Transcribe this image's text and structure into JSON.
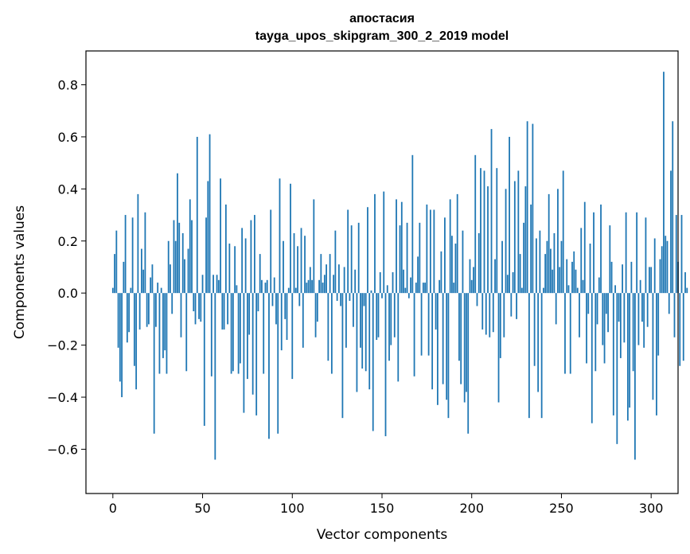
{
  "chart_data": {
    "type": "bar",
    "title": "апостасия",
    "subtitle": "tayga_upos_skipgram_300_2_2019 model",
    "xlabel": "Vector components",
    "ylabel": "Components values",
    "xlim": [
      -15,
      315
    ],
    "ylim": [
      -0.77,
      0.93
    ],
    "xticks": [
      0,
      50,
      100,
      150,
      200,
      250,
      300
    ],
    "xtick_labels": [
      "0",
      "50",
      "100",
      "150",
      "200",
      "250",
      "300"
    ],
    "yticks": [
      -0.6,
      -0.4,
      -0.2,
      0.0,
      0.2,
      0.4,
      0.6,
      0.8
    ],
    "ytick_labels": [
      "−0.6",
      "−0.4",
      "−0.2",
      "0.0",
      "0.2",
      "0.4",
      "0.6",
      "0.8"
    ],
    "bar_color": "#1f77b4",
    "grid": false,
    "values": [
      0.02,
      0.15,
      0.24,
      -0.21,
      -0.34,
      -0.4,
      0.12,
      0.3,
      -0.19,
      -0.15,
      0.02,
      0.29,
      -0.28,
      -0.37,
      0.38,
      -0.14,
      0.17,
      0.09,
      0.31,
      -0.13,
      -0.12,
      0.06,
      0.11,
      -0.54,
      -0.13,
      0.04,
      -0.31,
      0.02,
      -0.25,
      -0.22,
      -0.31,
      0.2,
      0.11,
      -0.08,
      0.28,
      0.2,
      0.46,
      0.27,
      -0.17,
      0.23,
      0.13,
      -0.3,
      0.17,
      0.36,
      0.28,
      -0.07,
      -0.12,
      0.6,
      -0.1,
      -0.11,
      0.07,
      -0.51,
      0.29,
      0.43,
      0.61,
      -0.32,
      0.07,
      -0.64,
      0.07,
      0.05,
      0.44,
      -0.14,
      -0.14,
      0.34,
      -0.12,
      0.19,
      -0.31,
      -0.3,
      0.18,
      0.03,
      -0.31,
      -0.27,
      0.25,
      -0.46,
      0.21,
      -0.33,
      -0.16,
      0.28,
      -0.39,
      0.3,
      -0.47,
      -0.07,
      0.15,
      0.05,
      -0.31,
      0.04,
      0.05,
      -0.56,
      0.32,
      -0.05,
      0.06,
      -0.12,
      -0.54,
      0.44,
      -0.22,
      0.2,
      -0.1,
      -0.18,
      0.02,
      0.42,
      -0.33,
      0.23,
      0.02,
      0.18,
      -0.05,
      0.25,
      -0.21,
      0.22,
      0.04,
      0.05,
      0.1,
      0.05,
      0.36,
      -0.17,
      -0.11,
      0.05,
      0.15,
      0.04,
      0.07,
      0.11,
      -0.26,
      0.15,
      -0.31,
      0.07,
      0.24,
      -0.03,
      0.11,
      -0.05,
      -0.48,
      0.1,
      -0.21,
      0.32,
      -0.03,
      0.26,
      -0.13,
      0.09,
      -0.38,
      0.27,
      -0.21,
      -0.29,
      -0.05,
      -0.3,
      0.33,
      -0.37,
      0.01,
      -0.53,
      0.38,
      -0.18,
      -0.17,
      0.08,
      -0.02,
      0.39,
      -0.55,
      0.03,
      -0.26,
      -0.2,
      0.08,
      -0.17,
      0.36,
      -0.34,
      0.26,
      0.35,
      0.09,
      0.02,
      0.27,
      -0.02,
      0.06,
      0.53,
      -0.32,
      0.04,
      0.14,
      0.27,
      -0.24,
      0.04,
      0.04,
      0.34,
      -0.24,
      0.32,
      -0.37,
      0.32,
      -0.14,
      -0.43,
      0.05,
      0.16,
      -0.35,
      0.29,
      -0.41,
      -0.48,
      0.36,
      0.22,
      0.04,
      0.19,
      0.38,
      -0.26,
      -0.35,
      0.24,
      -0.42,
      -0.38,
      -0.54,
      0.13,
      0.05,
      0.1,
      0.53,
      -0.05,
      0.23,
      0.48,
      -0.14,
      0.47,
      -0.16,
      0.41,
      -0.17,
      0.63,
      -0.15,
      0.13,
      0.48,
      -0.42,
      -0.25,
      0.2,
      -0.17,
      0.4,
      0.07,
      0.6,
      -0.09,
      0.08,
      0.43,
      -0.1,
      0.47,
      0.15,
      0.02,
      0.27,
      0.41,
      0.66,
      -0.48,
      0.34,
      0.65,
      -0.28,
      0.21,
      -0.38,
      0.24,
      -0.48,
      0.02,
      0.15,
      0.2,
      0.38,
      0.17,
      0.09,
      0.23,
      -0.12,
      0.4,
      0.1,
      0.2,
      0.47,
      -0.31,
      0.13,
      0.03,
      -0.31,
      0.12,
      0.16,
      0.09,
      0.02,
      -0.17,
      0.25,
      0.05,
      0.35,
      -0.27,
      -0.08,
      0.19,
      -0.5,
      0.31,
      -0.3,
      -0.12,
      0.06,
      0.34,
      -0.2,
      -0.27,
      -0.08,
      -0.15,
      0.26,
      0.12,
      -0.47,
      0.03,
      -0.58,
      -0.11,
      -0.25,
      0.11,
      -0.19,
      0.31,
      -0.49,
      -0.44,
      0.12,
      -0.3,
      -0.64,
      0.31,
      -0.2,
      0.05,
      -0.11,
      -0.21,
      0.29,
      -0.13,
      0.1,
      0.1,
      -0.41,
      0.21,
      -0.47,
      -0.24,
      0.13,
      0.18,
      0.85,
      0.22,
      0.2,
      -0.08,
      0.47,
      0.66,
      -0.17,
      0.3,
      0.12,
      -0.28,
      0.3,
      -0.26,
      0.08,
      0.02
    ]
  }
}
